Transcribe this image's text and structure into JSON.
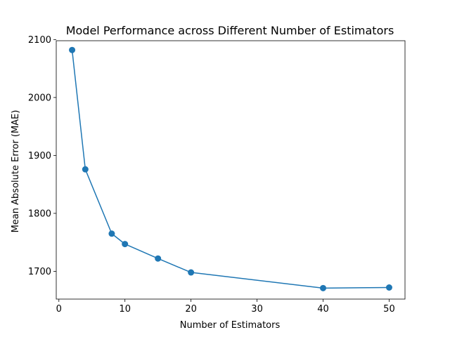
{
  "chart_data": {
    "type": "line",
    "title": "Model Performance across Different Number of Estimators",
    "xlabel": "Number of Estimators",
    "ylabel": "Mean Absolute Error (MAE)",
    "xlim": [
      -0.4,
      52.4
    ],
    "ylim": [
      1652,
      2098
    ],
    "xticks": [
      0,
      10,
      20,
      30,
      40,
      50
    ],
    "xtick_labels": [
      "0",
      "10",
      "20",
      "30",
      "40",
      "50"
    ],
    "yticks": [
      1700,
      1800,
      1900,
      2000,
      2100
    ],
    "ytick_labels": [
      "1700",
      "1800",
      "1900",
      "2000",
      "2100"
    ],
    "grid": false,
    "series": [
      {
        "color": "#1f77b4",
        "marker": "circle",
        "x": [
          2,
          4,
          8,
          10,
          15,
          20,
          40,
          50
        ],
        "y": [
          2082,
          1876,
          1765,
          1747,
          1722,
          1698,
          1671,
          1672
        ]
      }
    ]
  }
}
